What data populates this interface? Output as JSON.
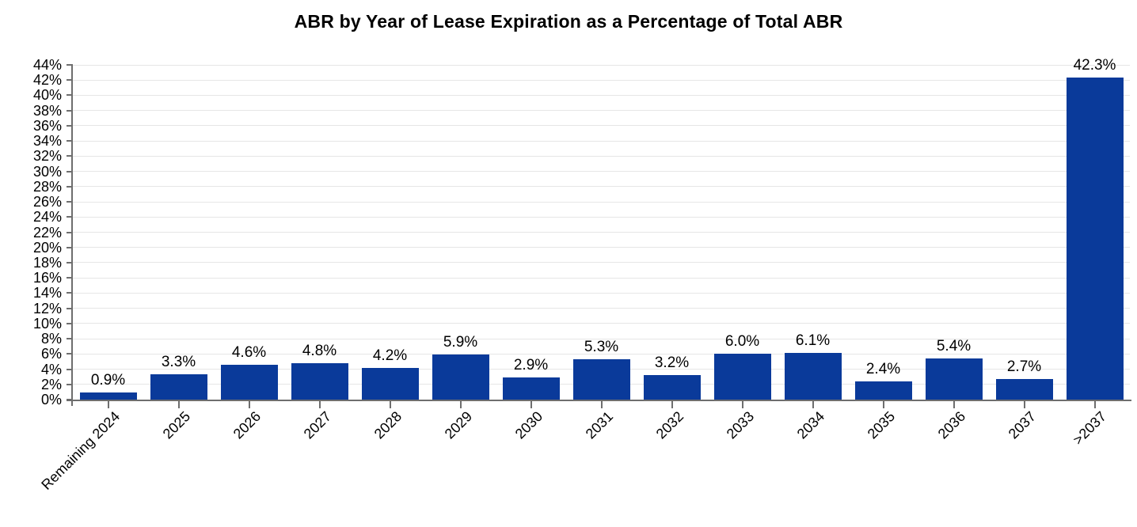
{
  "chart_data": {
    "type": "bar",
    "title": "ABR by Year of Lease Expiration as a Percentage of Total ABR",
    "categories": [
      "Remaining 2024",
      "2025",
      "2026",
      "2027",
      "2028",
      "2029",
      "2030",
      "2031",
      "2032",
      "2033",
      "2034",
      "2035",
      "2036",
      "2037",
      ">2037"
    ],
    "values": [
      0.9,
      3.3,
      4.6,
      4.8,
      4.2,
      5.9,
      2.9,
      5.3,
      3.2,
      6.0,
      6.1,
      2.4,
      5.4,
      2.7,
      42.3
    ],
    "value_labels": [
      "0.9%",
      "3.3%",
      "4.6%",
      "4.8%",
      "4.2%",
      "5.9%",
      "2.9%",
      "5.3%",
      "3.2%",
      "6.0%",
      "6.1%",
      "2.4%",
      "5.4%",
      "2.7%",
      "42.3%"
    ],
    "xlabel": "",
    "ylabel": "",
    "ylim": [
      0,
      44
    ],
    "ytick_step": 2,
    "ytick_labels": [
      "0%",
      "2%",
      "4%",
      "6%",
      "8%",
      "10%",
      "12%",
      "14%",
      "16%",
      "18%",
      "20%",
      "22%",
      "24%",
      "26%",
      "28%",
      "30%",
      "32%",
      "34%",
      "36%",
      "38%",
      "40%",
      "42%",
      "44%"
    ],
    "grid": true,
    "legend": "none",
    "colors": {
      "bar": "#0a3a9a",
      "gridline": "#e6e6e6",
      "axis": "#6e6e6e",
      "text": "#000000",
      "background": "#ffffff"
    }
  }
}
